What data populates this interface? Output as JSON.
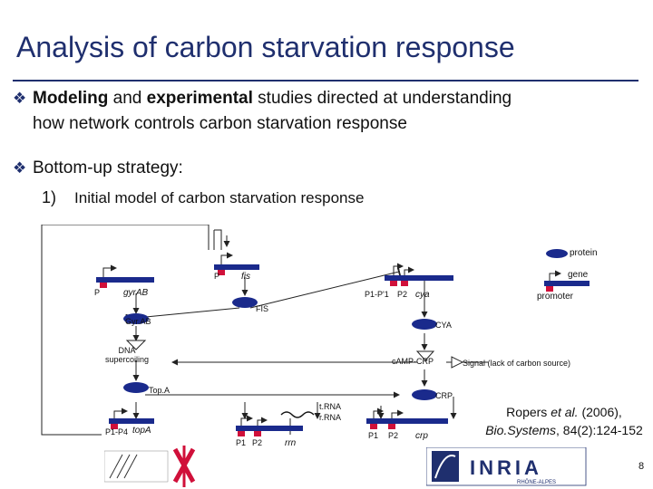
{
  "title": "Analysis of carbon starvation response",
  "bullets": {
    "b1_bold1": "Modeling",
    "b1_mid": " and ",
    "b1_bold2": "experimental",
    "b1_rest": " studies directed at understanding",
    "b1_line2": "how network controls carbon starvation response",
    "b2": "Bottom-up strategy:",
    "b2_sub_num": "1)",
    "b2_sub_text": "Initial model of carbon starvation response"
  },
  "legend": {
    "protein": "protein",
    "gene": "gene",
    "promoter": "promoter"
  },
  "diagram": {
    "genes": {
      "gyrAB": "gyrAB",
      "fis": "fis",
      "cya": "cya",
      "topA": "topA",
      "rrn": "rrn",
      "crp": "crp"
    },
    "promoters": {
      "gyrAB": "P",
      "fis": "P",
      "cya_1": "P1-P'1",
      "cya_2": "P2",
      "topA": "P1-P4",
      "rrn_1": "P1",
      "rrn_2": "P2",
      "crp_1": "P1",
      "crp_2": "P2"
    },
    "proteins": {
      "fis": "FIS",
      "gyrab": "Gyr.AB",
      "cya": "CYA",
      "camp_crp": "cAMP·CRP",
      "topa": "Top.A",
      "crp": "CRP"
    },
    "nodes": {
      "dna_line1": "DNA",
      "dna_line2": "supercoiling",
      "trna": "t.RNA",
      "rrna": "r.RNA",
      "signal": "Signal (lack of carbon source)"
    }
  },
  "citation": {
    "authors": "Ropers ",
    "etal": "et al.",
    "year": " (2006),",
    "journal": "Bio.Systems",
    "ref": ", 84(2):124-152"
  },
  "footer": {
    "page_number": "8",
    "logo_inria_text": "INRIA",
    "logo_inria_sub": "RHÔNE-ALPES"
  },
  "colors": {
    "title": "#1f2f6e",
    "protein": "#1a2a8c",
    "promoter": "#d0103a"
  }
}
